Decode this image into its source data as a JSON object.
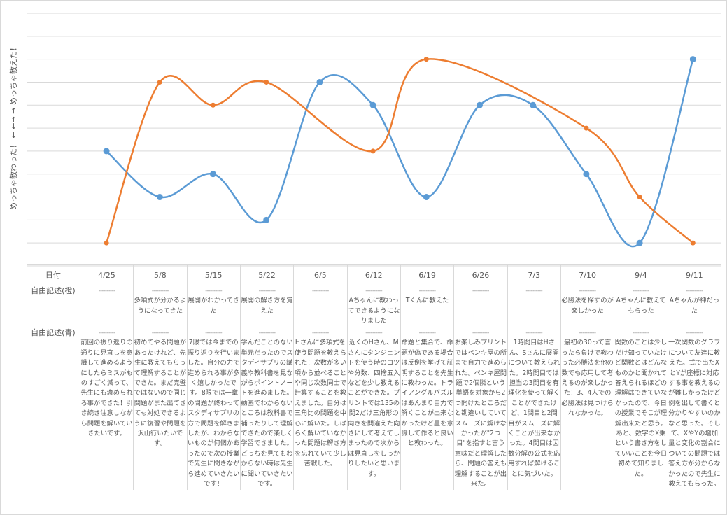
{
  "chart_data": {
    "type": "line",
    "smooth": true,
    "ylabel": "めっちゃ教わった！ ← ←→ → めっちゃ教えた！",
    "ylim": [
      0,
      11
    ],
    "grid": true,
    "categories": [
      "4/25",
      "5/8",
      "5/15",
      "5/22",
      "6/5",
      "6/12",
      "6/19",
      "6/26",
      "7/3",
      "7/10",
      "9/4",
      "9/11"
    ],
    "series": [
      {
        "name": "自由記述(青)",
        "color": "#5b9bd5",
        "values": [
          5,
          3,
          4,
          2,
          8,
          7,
          3,
          7,
          7,
          4,
          1,
          9
        ]
      },
      {
        "name": "自由記述(橙)",
        "color": "#ed7d31",
        "values": [
          1,
          8,
          7,
          8,
          null,
          5,
          9,
          null,
          null,
          6,
          3,
          1
        ]
      }
    ]
  },
  "table": {
    "header_label": "日付",
    "row_orange_label": "自由記述(橙)",
    "row_blue_label": "自由記述(青)",
    "dash": "----------",
    "orange": [
      "",
      "多項式が分かるようになってきた",
      "展開がわかってきた",
      "展開の解き方を覚えた",
      "",
      "Aちゃんに教わってできるようになりました",
      "Tくんに教えた",
      "",
      "",
      "必勝法を探すのが楽しかった",
      "Aちゃんに教えてもらった",
      "Aちゃんが神だった"
    ],
    "blue": [
      "前回の振り返りの通りに見直しを意識して進めるようにしたらミスがものすごく減って、先生にも褒められる事ができた！引き続き注意しながら問題を解いていきたいです。",
      "初めてやる問題があったけれど、先生に教えてもらって理解することができた。まだ完璧ではないので同じ問題がまた出てきても対処できるように復習や問題を沢山行いたいです。",
      "7限では今までの振り返りを行いました。自分の力で進められる事が多く嬉しかったです。8限では一章の問題が終わってスタディサプリの方で問題を解きましたが、わからないものが何個かあったので次の授業で先生に聞きながら進めていきたいです！",
      "学んだことのない単元だったのでスタディサプリの講義や教科書を見ながらポイントノートを進めました。動画でわからないところは教科書で補ったりして理解できたので楽しく学習できました。どっちを見てもわからない時は先生に聞いていきたいです。",
      "Hさんに多項式を使う問題を教えられた！次数が多い項から並べることや同じ次数同士で計算することを教えました。自分は三角比の問題を中心に解いた。しばらく解いていなかった問題は解き方を忘れていて少し苦戦した。",
      "近くのHさん、Mさんにタンジェントを使う時のコツや分数、四捨五入などを少し教えることができた。プリントでは135の問2だけ三角形の向きを間違えた向きにして考えてしまったので次からは見直しをしっかりしたいと思います。",
      "命題と集合で、命題が偽である場合は反例を挙げて証明することを先生に教わった。トライアングルパズルはあんまり自力で解くことが出来なかったけど星を意識して作ると良いと教わった。",
      "お楽しみプリントではペンキ屋の所まで自力で進められた。ペンキ屋問題で2個隣という単語を対象から2つ開けたところだと勘違いしていてスムーズに解けなかったが\"2つ目\"を指すと言う意味だと理解したら、問題の答えも理解することが出来た。",
      "1時間目はHさん、Sさんに展開について教えられた。2時間目では担当の3問目を有理化を使って解くことができたけど、1問目と2問目がスムーズに解くことが出来なかった。4問目は因数分解の公式を応用すれば解けることに気づいた。",
      "最初の30って言ったら負けで教わった必勝法を他の数でも応用して考えるのが楽しかった！3、4人での必勝法は見つけられなかった。",
      "関数のことは少しだけ知っていたけど関数とはどんなものかと聞かれて答えられるほどの理解はできていなかったので、今日の授業でそこが理解出来たと思う。あと、数字のX乗という書き方をしていいことを今日初めて知りました。",
      "一次関数のグラフについて友達に教えた。式で出たXとYが座標に対応する事を教えるのが難しかったけど例を出して書くと分かりやすいのかなと思った。そして、XやYの増加量と変化の割合についての問題では答え方が分からなかったので先生に教えてもらった。"
    ]
  }
}
